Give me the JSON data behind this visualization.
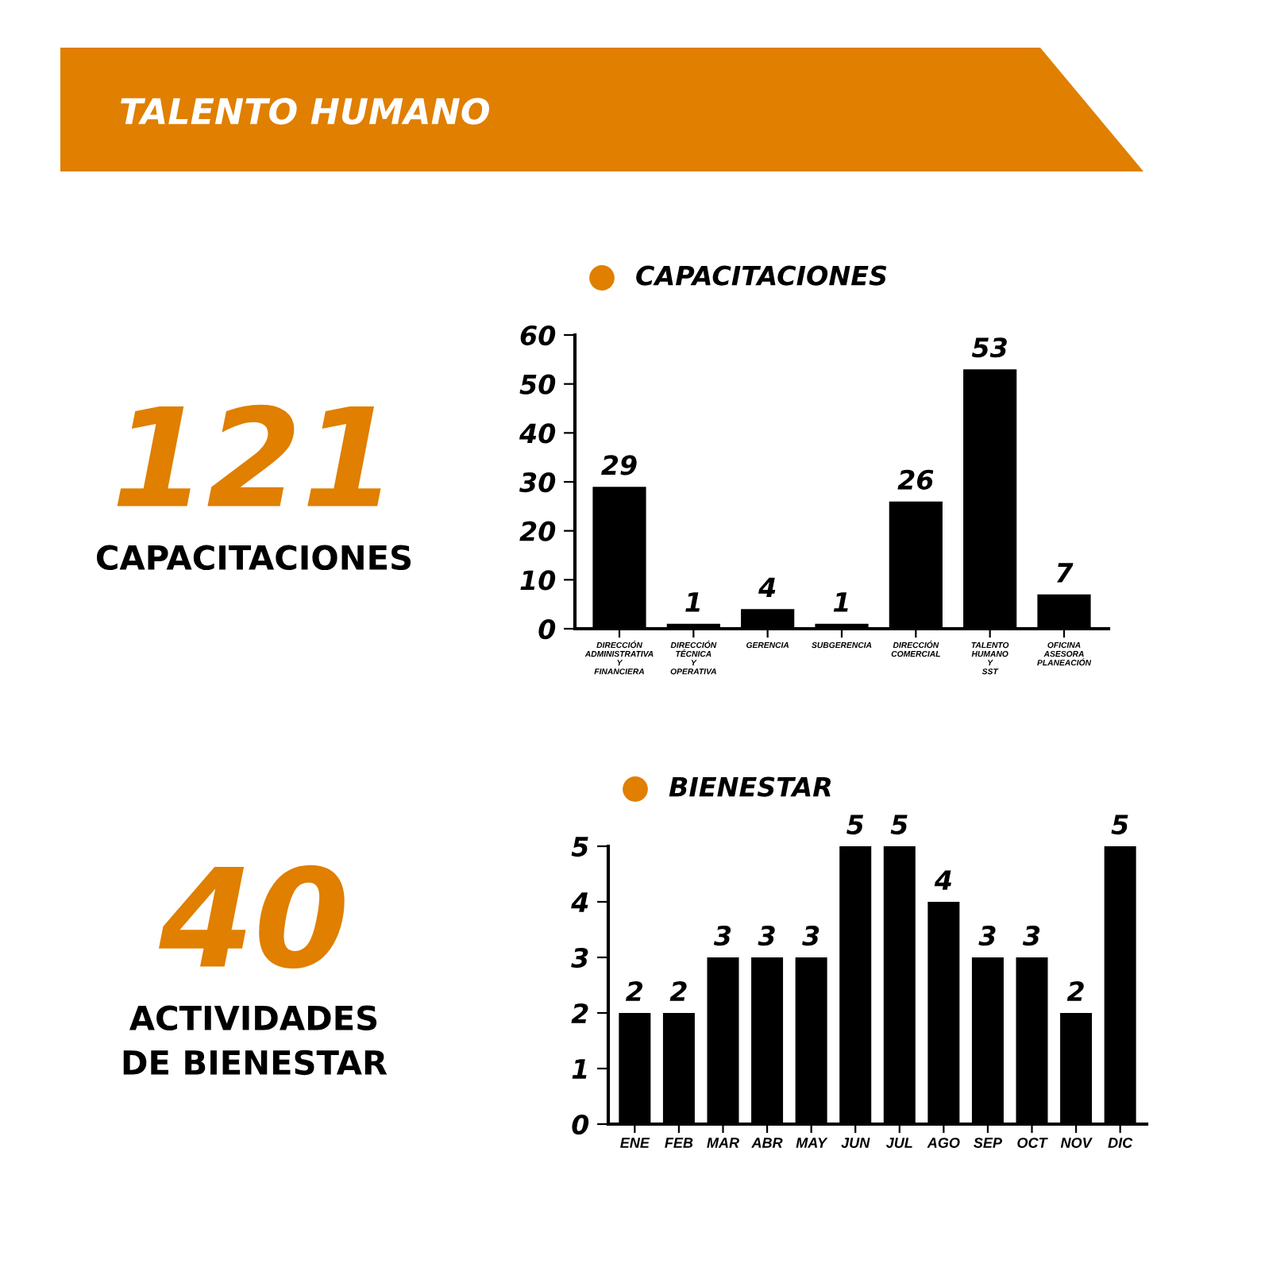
{
  "chart_data": [
    {
      "type": "bar",
      "title": "CAPACITACIONES",
      "categories": [
        "DIRECCIÓN ADMINISTRATIVA Y FINANCIERA",
        "DIRECCIÓN TÉCNICA Y OPERATIVA",
        "GERENCIA",
        "SUBGERENCIA",
        "DIRECCIÓN COMERCIAL",
        "TALENTO HUMANO Y SST",
        "OFICINA ASESORA PLANEACIÓN"
      ],
      "values": [
        29,
        1,
        4,
        1,
        26,
        53,
        7
      ],
      "color": "#000000",
      "ylim": [
        0,
        60
      ],
      "yticks": [
        0,
        10,
        20,
        30,
        40,
        50,
        60
      ],
      "data_labels": true,
      "grid": false,
      "legend": false,
      "annotations": [
        "TALENTO HUMANO",
        "121",
        "CAPACITACIONES"
      ]
    },
    {
      "type": "bar",
      "title": "BIENESTAR",
      "categories": [
        "ENE",
        "FEB",
        "MAR",
        "ABR",
        "MAY",
        "JUN",
        "JUL",
        "AGO",
        "SEP",
        "OCT",
        "NOV",
        "DIC"
      ],
      "values": [
        2,
        2,
        3,
        3,
        3,
        5,
        5,
        4,
        3,
        3,
        2,
        5
      ],
      "color": "#000000",
      "ylim": [
        0,
        5
      ],
      "yticks": [
        0,
        1,
        2,
        3,
        4,
        5
      ],
      "data_labels": true,
      "grid": false,
      "legend": false,
      "annotations": [
        "40",
        "ACTIVIDADES DE BIENESTAR"
      ]
    }
  ]
}
